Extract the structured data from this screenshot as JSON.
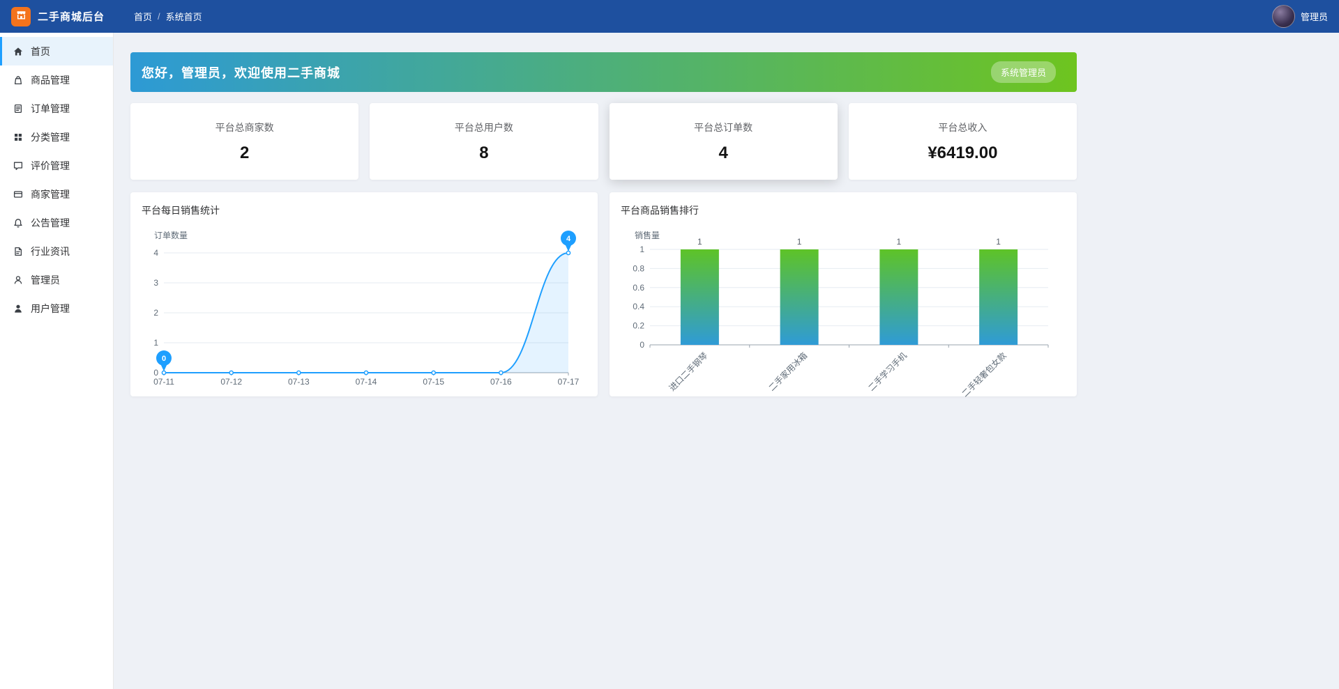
{
  "theme": {
    "topbar_color": "#1e509f",
    "accent": "#1e9fff"
  },
  "topbar": {
    "app_title": "二手商城后台",
    "breadcrumb": {
      "home": "首页",
      "separator": "/",
      "current": "系统首页"
    },
    "user_name": "管理员"
  },
  "sidebar": {
    "items": [
      {
        "label": "首页",
        "icon": "home-icon",
        "active": true
      },
      {
        "label": "商品管理",
        "icon": "goods-bag-icon",
        "active": false
      },
      {
        "label": "订单管理",
        "icon": "order-document-icon",
        "active": false
      },
      {
        "label": "分类管理",
        "icon": "category-grid-icon",
        "active": false
      },
      {
        "label": "评价管理",
        "icon": "review-chat-icon",
        "active": false
      },
      {
        "label": "商家管理",
        "icon": "merchant-card-icon",
        "active": false
      },
      {
        "label": "公告管理",
        "icon": "announcement-bell-icon",
        "active": false
      },
      {
        "label": "行业资讯",
        "icon": "news-file-icon",
        "active": false
      },
      {
        "label": "管理员",
        "icon": "admin-person-icon",
        "active": false
      },
      {
        "label": "用户管理",
        "icon": "users-person-icon",
        "active": false
      }
    ]
  },
  "banner": {
    "greeting": "您好，管理员，欢迎使用二手商城",
    "role_badge": "系统管理员",
    "gradient_start": "#2d9ad5",
    "gradient_end": "#6ec41f"
  },
  "stats": [
    {
      "label": "平台总商家数",
      "value": "2",
      "highlighted": false
    },
    {
      "label": "平台总用户数",
      "value": "8",
      "highlighted": false
    },
    {
      "label": "平台总订单数",
      "value": "4",
      "highlighted": true
    },
    {
      "label": "平台总收入",
      "value": "¥6419.00",
      "highlighted": false
    }
  ],
  "chart_data": [
    {
      "type": "line",
      "title": "平台每日销售统计",
      "ylabel": "订单数量",
      "x": [
        "07-11",
        "07-12",
        "07-13",
        "07-14",
        "07-15",
        "07-16",
        "07-17"
      ],
      "values": [
        0,
        0,
        0,
        0,
        0,
        0,
        4
      ],
      "ylim": [
        0,
        4
      ],
      "yticks": [
        0,
        1,
        2,
        3,
        4
      ],
      "grid": true,
      "smooth": true,
      "legend_position": "none",
      "line_color": "#1e9fff",
      "area_color": "rgba(30,159,255,0.12)",
      "markers": [
        {
          "x_index": 0,
          "value": 0,
          "kind": "min-pin"
        },
        {
          "x_index": 6,
          "value": 4,
          "kind": "max-pin"
        }
      ]
    },
    {
      "type": "bar",
      "title": "平台商品销售排行",
      "ylabel": "销售量",
      "categories": [
        "进口二手钢琴",
        "二手家用冰箱",
        "二手学习手机",
        "二手轻奢包女款"
      ],
      "values": [
        1,
        1,
        1,
        1
      ],
      "ylim": [
        0,
        1
      ],
      "yticks": [
        0,
        0.2,
        0.4,
        0.6,
        0.8,
        1
      ],
      "grid": true,
      "label_rotate": 45,
      "legend_position": "none",
      "bar_gradient_top": "#5ec327",
      "bar_gradient_bottom": "#2f9bd6"
    }
  ]
}
